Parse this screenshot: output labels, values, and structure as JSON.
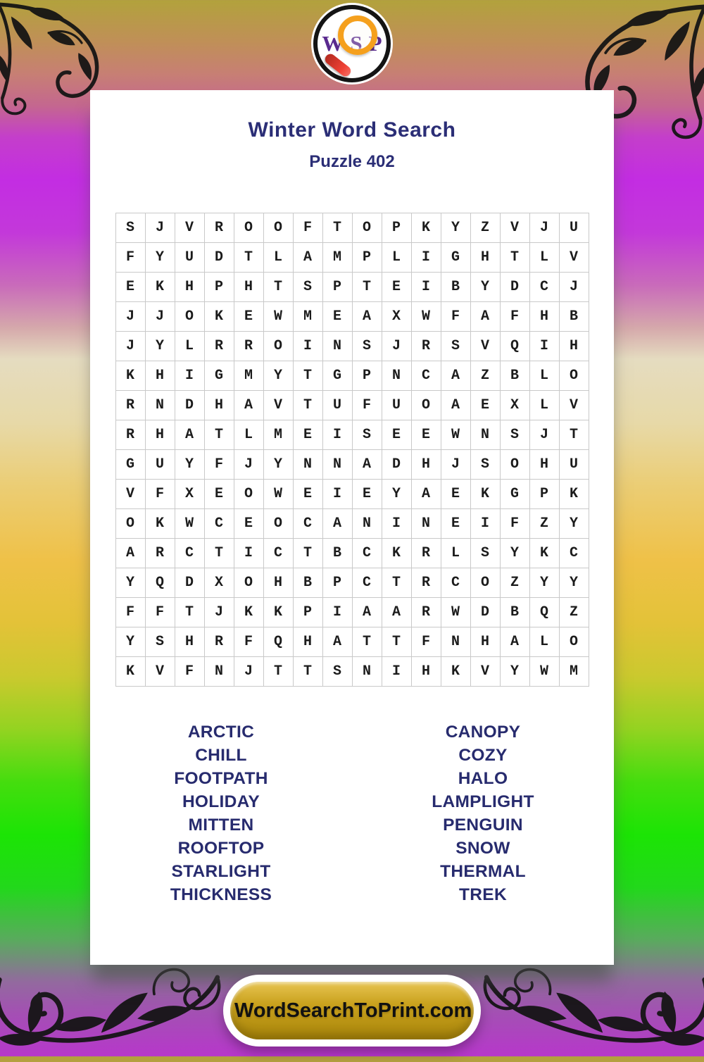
{
  "logo": {
    "letters": {
      "w": "W",
      "s": "S",
      "p": "P"
    }
  },
  "header": {
    "title": "Winter Word Search",
    "subtitle": "Puzzle 402"
  },
  "grid": {
    "size": 16,
    "rows": [
      "SJVROOFTOPKYZVJU",
      "FYUDTLAMPLIGHTLV",
      "EKHPHTSPTEIBYDCJ",
      "JJOKEWMEAXWFAFHB",
      "JYLRROINSJRSVQIH",
      "KHIGMYTGPNCAZBLO",
      "RNDHAVTUFUOAEXLV",
      "RHATLMEISEEWNSJT",
      "GUYFJYNNADHJSOHU",
      "VFXEOWEIEYAEKGPK",
      "OKWCEOCANINEIFZY",
      "ARCTICTBCKRLSYKC",
      "YQDXOHBPCTRCOZYY",
      "FFTJKKPIAARWDBQZ",
      "YSHRFQHATTFNHALO",
      "KVFNJTTSNIHKVYWM"
    ]
  },
  "words": {
    "left": [
      "ARCTIC",
      "CHILL",
      "FOOTPATH",
      "HOLIDAY",
      "MITTEN",
      "ROOFTOP",
      "STARLIGHT",
      "THICKNESS"
    ],
    "right": [
      "CANOPY",
      "COZY",
      "HALO",
      "LAMPLIGHT",
      "PENGUIN",
      "SNOW",
      "THERMAL",
      "TREK"
    ]
  },
  "footer": {
    "site_button": "WordSearchToPrint.com"
  },
  "colors": {
    "heading_navy": "#2b2e76",
    "word_navy": "#272b6e",
    "grid_line": "#c9c9c9",
    "grid_letter": "#1b1b1b",
    "logo_purple": "#5a2a8f",
    "magnifier_orange": "#f5a01d",
    "magnifier_handle_red": "#e8392e",
    "button_gold": "#caa21e",
    "bg_top_olive": "#b2a23c",
    "bg_magenta": "#c32de2",
    "bg_gold": "#efc148",
    "bg_green": "#1ce405",
    "bg_bottom_purple": "#b737cb"
  }
}
